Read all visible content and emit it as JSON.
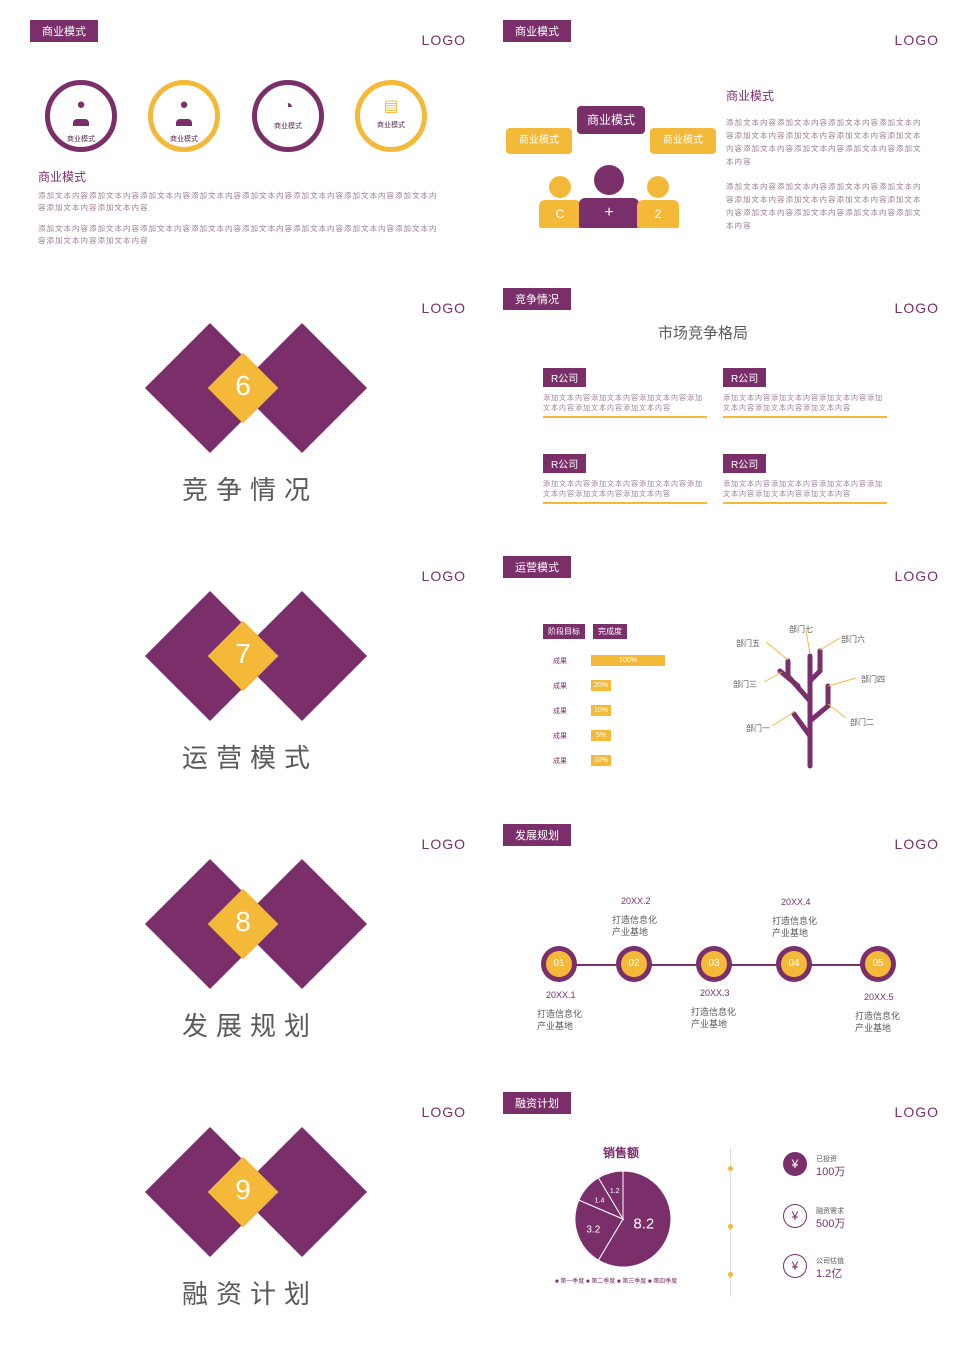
{
  "logo": "LOGO",
  "slide1": {
    "tag": "商业模式",
    "circles": [
      {
        "label": "商业模式",
        "icon": "person-icon",
        "style": "purple"
      },
      {
        "label": "商业模式",
        "icon": "person-icon",
        "style": "yellow"
      },
      {
        "label": "商业模式",
        "icon": "clock-icon",
        "style": "purple"
      },
      {
        "label": "商业模式",
        "icon": "document-icon",
        "style": "yellow"
      }
    ],
    "heading": "商业模式",
    "para1": "添加文本内容添加文本内容添加文本内容添加文本内容添加文本内容添加文本内容添加文本内容添加文本内容添加文本内容添加文本内容",
    "para2": "添加文本内容添加文本内容添加文本内容添加文本内容添加文本内容添加文本内容添加文本内容添加文本内容添加文本内容添加文本内容"
  },
  "slide2": {
    "tag": "商业模式",
    "bubble_center": "商业模式",
    "bubble_left": "商业模式",
    "bubble_right": "商业模式",
    "person_left": "C",
    "person_center": "+",
    "person_right": "2",
    "heading": "商业模式",
    "para1": "添加文本内容添加文本内容添加文本内容添加文本内容添加文本内容添加文本内容添加文本内容添加文本内容添加文本内容添加文本内容添加文本内容添加文本内容",
    "para2": "添加文本内容添加文本内容添加文本内容添加文本内容添加文本内容添加文本内容添加文本内容添加文本内容添加文本内容添加文本内容添加文本内容添加文本内容"
  },
  "section6": {
    "num": "6",
    "title": "竞争情况"
  },
  "slide4": {
    "tag": "竞争情况",
    "heading": "市场竞争格局",
    "companies": [
      {
        "name": "R公司",
        "text": "添加文本内容添加文本内容添加文本内容添加文本内容添加文本内容添加文本内容"
      },
      {
        "name": "R公司",
        "text": "添加文本内容添加文本内容添加文本内容添加文本内容添加文本内容添加文本内容"
      },
      {
        "name": "R公司",
        "text": "添加文本内容添加文本内容添加文本内容添加文本内容添加文本内容添加文本内容"
      },
      {
        "name": "R公司",
        "text": "添加文本内容添加文本内容添加文本内容添加文本内容添加文本内容添加文本内容"
      }
    ]
  },
  "section7": {
    "num": "7",
    "title": "运营模式"
  },
  "slide6": {
    "tag": "运营模式",
    "header_left": "阶段目标",
    "header_right": "完成度",
    "rows": [
      {
        "label": "成果",
        "value": "100%",
        "fraction": 1.0
      },
      {
        "label": "成果",
        "value": "20%",
        "fraction": 0.2
      },
      {
        "label": "成果",
        "value": "10%",
        "fraction": 0.1
      },
      {
        "label": "成果",
        "value": "5%",
        "fraction": 0.05
      },
      {
        "label": "成果",
        "value": "10%",
        "fraction": 0.1
      }
    ],
    "departments": {
      "d1": "部门一",
      "d2": "部门二",
      "d3": "部门三",
      "d4": "部门四",
      "d5": "部门五",
      "d6": "部门六",
      "d7": "部门七"
    }
  },
  "section8": {
    "num": "8",
    "title": "发展规划"
  },
  "slide8": {
    "tag": "发展规划",
    "steps": [
      {
        "num": "01",
        "date": "20XX.1",
        "text1": "打造信息化",
        "text2": "产业基地"
      },
      {
        "num": "02",
        "date": "20XX.2",
        "text1": "打造信息化",
        "text2": "产业基地"
      },
      {
        "num": "03",
        "date": "20XX.3",
        "text1": "打造信息化",
        "text2": "产业基地"
      },
      {
        "num": "04",
        "date": "20XX.4",
        "text1": "打造信息化",
        "text2": "产业基地"
      },
      {
        "num": "05",
        "date": "20XX.5",
        "text1": "打造信息化",
        "text2": "产业基地"
      }
    ]
  },
  "section9": {
    "num": "9",
    "title": "融资计划"
  },
  "slide10": {
    "tag": "融资计划",
    "chart_title": "销售额",
    "legend": [
      "第一季度",
      "第二季度",
      "第三季度",
      "第四季度"
    ],
    "funding": [
      {
        "label": "已投资",
        "value": "100万",
        "icon": "money-bag-icon"
      },
      {
        "label": "融资需求",
        "value": "500万",
        "icon": "money-bag-outline-icon"
      },
      {
        "label": "公司估值",
        "value": "1.2亿",
        "icon": "yen-circle-icon"
      }
    ]
  },
  "chart_data": {
    "type": "pie",
    "title": "销售额",
    "categories": [
      "第一季度",
      "第二季度",
      "第三季度",
      "第四季度"
    ],
    "values": [
      8.2,
      3.2,
      1.4,
      1.2
    ],
    "colors": [
      "#7a2f6a",
      "#7a2f6a",
      "#7a2f6a",
      "#7a2f6a"
    ],
    "legend_position": "bottom"
  }
}
